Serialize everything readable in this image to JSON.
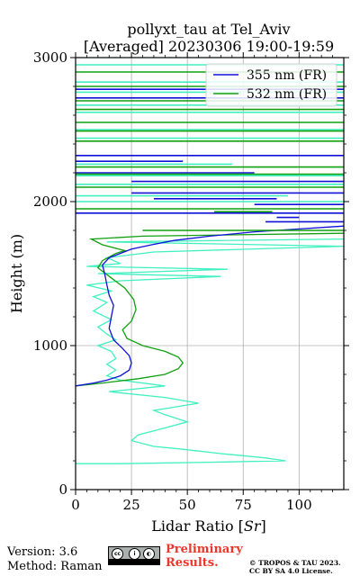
{
  "chart_data": {
    "type": "line",
    "title": "pollyxt_tau at Tel_Aviv",
    "subtitle": "[Averaged] 20230306 19:00-19:59",
    "xlabel": "Lidar Ratio [Sr]",
    "ylabel": "Height (m)",
    "xlim": [
      0,
      120
    ],
    "ylim": [
      0,
      3000
    ],
    "xticks": [
      "0",
      "25",
      "50",
      "75",
      "100"
    ],
    "yticks": [
      "0",
      "1000",
      "2000",
      "3000"
    ],
    "grid": true,
    "legend_position": "top-right",
    "series": [
      {
        "name": "355 nm (FR)",
        "color": "#1010d8",
        "points": [
          [
            0,
            720
          ],
          [
            8,
            740
          ],
          [
            14,
            760
          ],
          [
            20,
            790
          ],
          [
            24,
            830
          ],
          [
            25,
            880
          ],
          [
            24,
            930
          ],
          [
            21,
            980
          ],
          [
            17,
            1040
          ],
          [
            15,
            1120
          ],
          [
            16,
            1200
          ],
          [
            17,
            1280
          ],
          [
            15,
            1350
          ],
          [
            14,
            1420
          ],
          [
            13,
            1500
          ],
          [
            12,
            1560
          ],
          [
            15,
            1610
          ],
          [
            20,
            1640
          ],
          [
            25,
            1670
          ],
          [
            34,
            1700
          ],
          [
            44,
            1730
          ],
          [
            60,
            1760
          ],
          [
            80,
            1790
          ],
          [
            100,
            1810
          ],
          [
            120,
            1830
          ]
        ]
      },
      {
        "name": "532 nm (FR)",
        "color": "#10a010",
        "points": [
          [
            0,
            720
          ],
          [
            12,
            740
          ],
          [
            28,
            770
          ],
          [
            40,
            800
          ],
          [
            46,
            840
          ],
          [
            48,
            880
          ],
          [
            46,
            920
          ],
          [
            40,
            960
          ],
          [
            30,
            1000
          ],
          [
            23,
            1050
          ],
          [
            21,
            1110
          ],
          [
            25,
            1170
          ],
          [
            27,
            1250
          ],
          [
            26,
            1320
          ],
          [
            22,
            1400
          ],
          [
            16,
            1470
          ],
          [
            10,
            1540
          ],
          [
            12,
            1590
          ],
          [
            18,
            1640
          ],
          [
            22,
            1660
          ],
          [
            12,
            1700
          ],
          [
            7,
            1740
          ],
          [
            30,
            1760
          ],
          [
            120,
            1780
          ]
        ]
      },
      {
        "name": "",
        "color": "#40f0c0",
        "points": [
          [
            0,
            180
          ],
          [
            20,
            180
          ],
          [
            60,
            190
          ],
          [
            94,
            200
          ],
          [
            85,
            220
          ],
          [
            65,
            250
          ],
          [
            48,
            280
          ],
          [
            35,
            300
          ],
          [
            25,
            340
          ],
          [
            28,
            380
          ],
          [
            38,
            420
          ],
          [
            50,
            470
          ],
          [
            40,
            520
          ],
          [
            35,
            550
          ],
          [
            55,
            600
          ],
          [
            40,
            640
          ],
          [
            15,
            680
          ],
          [
            40,
            720
          ],
          [
            20,
            760
          ],
          [
            14,
            790
          ],
          [
            18,
            830
          ],
          [
            14,
            870
          ],
          [
            18,
            910
          ],
          [
            16,
            960
          ],
          [
            10,
            1000
          ],
          [
            18,
            1040
          ],
          [
            14,
            1080
          ],
          [
            10,
            1130
          ],
          [
            16,
            1180
          ],
          [
            8,
            1240
          ],
          [
            14,
            1300
          ],
          [
            8,
            1340
          ],
          [
            16,
            1380
          ],
          [
            5,
            1420
          ],
          [
            20,
            1450
          ],
          [
            65,
            1480
          ],
          [
            10,
            1500
          ],
          [
            68,
            1530
          ],
          [
            5,
            1550
          ],
          [
            20,
            1570
          ],
          [
            14,
            1610
          ],
          [
            35,
            1650
          ],
          [
            120,
            1690
          ],
          [
            14,
            1720
          ],
          [
            120,
            1740
          ]
        ]
      }
    ]
  },
  "footer": {
    "version": "Version: 3.6",
    "method": "Method: Raman",
    "preliminary": "Preliminary\nResults.",
    "copyright1": "© TROPOS & TAU 2023.",
    "copyright2": "CC BY SA 4.0 License."
  },
  "license_badge": {
    "icon": "cc-by-sa-icon",
    "cc": "cc",
    "by": "BY",
    "sa": "SA"
  }
}
